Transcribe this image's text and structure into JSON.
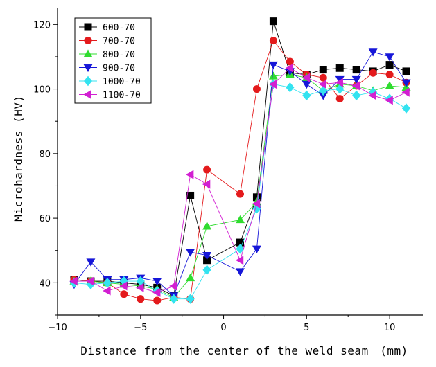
{
  "chart_data": {
    "type": "line",
    "title": "",
    "xlabel": "Distance from the center of the weld seam　(mm)",
    "ylabel": "Microhardness (HV)",
    "xlim": [
      -10,
      12
    ],
    "ylim": [
      30,
      125
    ],
    "xticks": [
      -10,
      -5,
      0,
      5,
      10
    ],
    "xtick_labels": [
      "−10",
      "−5",
      "0",
      "5",
      "10"
    ],
    "yticks": [
      40,
      60,
      80,
      100,
      120
    ],
    "ytick_labels": [
      "40",
      "60",
      "80",
      "100",
      "120"
    ],
    "grid": false,
    "legend_position": "top-left",
    "x": [
      -9,
      -8,
      -7,
      -6,
      -5,
      -4,
      -3,
      -2,
      -1,
      1,
      2,
      3,
      4,
      5,
      6,
      7,
      8,
      9,
      10,
      11
    ],
    "series": [
      {
        "name": "600-70",
        "color": "#000000",
        "marker": "square",
        "values": [
          41,
          40.5,
          40.5,
          40,
          39.5,
          38.5,
          36,
          67,
          47,
          52.5,
          66.5,
          121,
          105,
          104.5,
          106,
          106.5,
          106,
          105.5,
          107.5,
          105.5
        ]
      },
      {
        "name": "700-70",
        "color": "#e41a1c",
        "marker": "circle",
        "values": [
          41,
          40.5,
          40,
          36.5,
          35,
          34.5,
          35.5,
          35,
          75,
          67.5,
          100,
          115,
          108.5,
          104.5,
          103.5,
          97,
          101,
          105,
          104.5,
          102
        ]
      },
      {
        "name": "800-70",
        "color": "#2fdc2f",
        "marker": "triangle-up",
        "values": [
          40.5,
          40.5,
          40,
          39.5,
          39,
          38,
          35.5,
          41.5,
          57.5,
          59.5,
          65,
          104,
          104.5,
          103.5,
          99.5,
          101.5,
          101,
          99.5,
          101,
          100.5
        ]
      },
      {
        "name": "900-70",
        "color": "#1616d8",
        "marker": "triangle-down",
        "values": [
          39.5,
          46.5,
          41,
          41,
          41.5,
          40.5,
          36,
          49.5,
          48.5,
          43.5,
          50.5,
          107.5,
          105.5,
          101.5,
          98,
          103,
          103,
          111.5,
          110,
          102
        ]
      },
      {
        "name": "1000-70",
        "color": "#33e3f0",
        "marker": "diamond",
        "values": [
          40,
          39.5,
          40,
          40.5,
          40.5,
          37.5,
          35,
          35,
          44,
          50.5,
          63,
          101.5,
          100.5,
          98,
          99.5,
          100,
          98,
          99,
          97,
          94
        ]
      },
      {
        "name": "1100-70",
        "color": "#d21fd2",
        "marker": "triangle-left",
        "values": [
          40.5,
          40.5,
          37.5,
          39,
          38.5,
          37,
          39,
          73.5,
          70.5,
          47,
          64.5,
          101.5,
          106.5,
          103.5,
          101.5,
          102,
          101,
          98,
          96.5,
          99
        ]
      }
    ]
  }
}
